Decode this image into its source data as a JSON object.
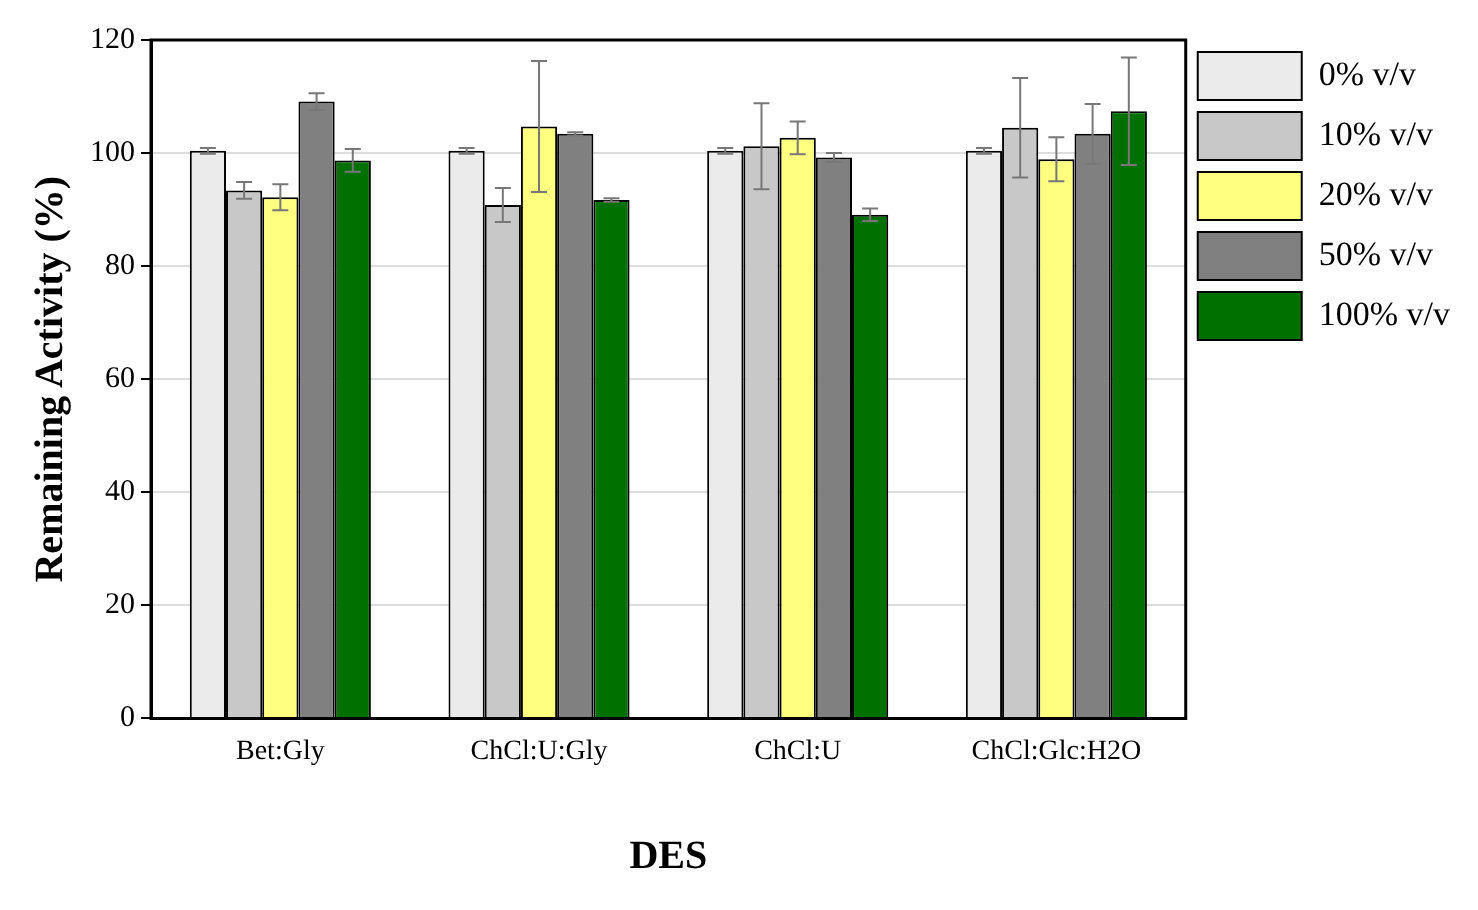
{
  "chart_data": {
    "type": "bar",
    "xlabel": "DES",
    "ylabel": "Remaining Activity (%)",
    "categories": [
      "Bet:Gly",
      "ChCl:U:Gly",
      "ChCl:U",
      "ChCl:Glc:H2O"
    ],
    "series": [
      {
        "name": "0% v/v",
        "color": "#ebebeb",
        "values": [
          100.4,
          100.4,
          100.4,
          100.4
        ],
        "errors": [
          0.5,
          0.5,
          0.5,
          0.5
        ]
      },
      {
        "name": "10% v/v",
        "color": "#c8c8c8",
        "values": [
          93.4,
          90.8,
          101.2,
          104.5
        ],
        "errors": [
          1.5,
          3.0,
          7.6,
          8.8
        ]
      },
      {
        "name": "20% v/v",
        "color": "#ffff80",
        "values": [
          92.2,
          104.7,
          102.7,
          98.9
        ],
        "errors": [
          2.3,
          11.6,
          2.9,
          3.9
        ]
      },
      {
        "name": "50% v/v",
        "color": "#808080",
        "values": [
          109.1,
          103.4,
          99.2,
          103.4
        ],
        "errors": [
          1.5,
          0.3,
          0.8,
          5.3
        ]
      },
      {
        "name": "100% v/v",
        "color": "#007000",
        "values": [
          98.7,
          91.7,
          89.1,
          107.4
        ],
        "errors": [
          2.0,
          0.3,
          1.1,
          9.5
        ]
      }
    ],
    "ylim": [
      0,
      120
    ],
    "yticks": [
      0,
      20,
      40,
      60,
      80,
      100,
      120
    ],
    "grid": "y",
    "legend": "top right"
  }
}
